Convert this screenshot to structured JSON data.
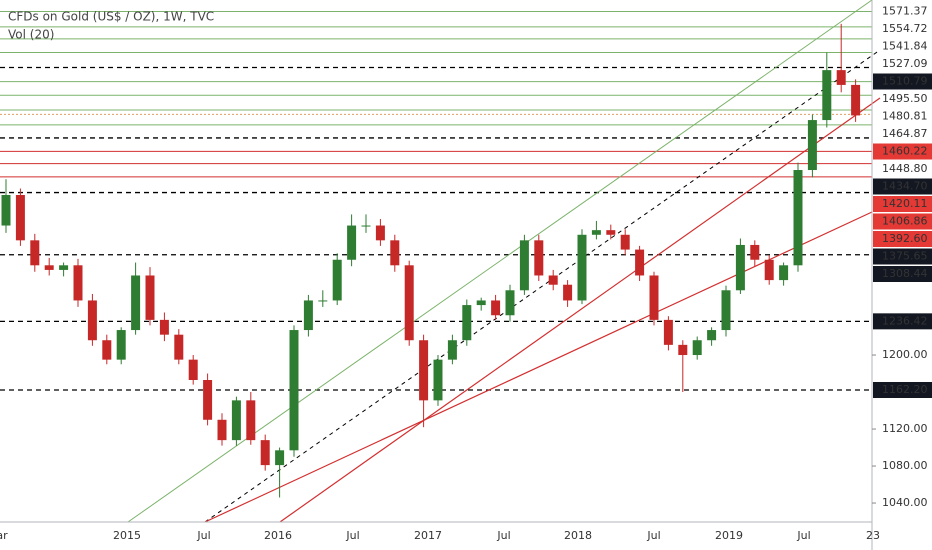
{
  "chart_data": {
    "type": "candlestick",
    "title": "CFDs on Gold (US$ / OZ), 1W, TVC",
    "subtitle": "Vol (20)",
    "up_color": "#2e7d32",
    "down_color": "#c62828",
    "ylim": [
      1019.5,
      1583.8
    ],
    "yticks": [
      {
        "value": 1040,
        "label": "1040.00"
      },
      {
        "value": 1080,
        "label": "1080.00"
      },
      {
        "value": 1120,
        "label": "1120.00"
      },
      {
        "value": 1200,
        "label": "1200.00"
      }
    ],
    "xticks": [
      "ar",
      "2015",
      "Jul",
      "2016",
      "Jul",
      "2017",
      "Jul",
      "2018",
      "Jul",
      "2019",
      "Jul",
      "23"
    ],
    "open": [
      1340,
      1373,
      1324,
      1297,
      1292,
      1297,
      1259,
      1216,
      1195,
      1227,
      1286,
      1238,
      1222,
      1195,
      1173,
      1130,
      1108,
      1151,
      1108,
      1081,
      1097,
      1227,
      1259,
      1259,
      1303,
      1340,
      1340,
      1324,
      1297,
      1216,
      1151,
      1195,
      1216,
      1254,
      1259,
      1243,
      1270,
      1324,
      1286,
      1276,
      1259,
      1330,
      1335,
      1330,
      1314,
      1286,
      1238,
      1211,
      1200,
      1216,
      1227,
      1270,
      1319,
      1303,
      1281,
      1297,
      1400,
      1454,
      1508,
      1492
    ],
    "high": [
      1390,
      1380,
      1331,
      1305,
      1300,
      1304,
      1266,
      1222,
      1230,
      1300,
      1295,
      1246,
      1228,
      1200,
      1180,
      1137,
      1155,
      1160,
      1114,
      1100,
      1232,
      1265,
      1270,
      1310,
      1352,
      1352,
      1347,
      1330,
      1302,
      1222,
      1200,
      1222,
      1260,
      1262,
      1265,
      1276,
      1330,
      1330,
      1292,
      1281,
      1336,
      1345,
      1341,
      1336,
      1318,
      1290,
      1242,
      1216,
      1220,
      1230,
      1275,
      1326,
      1324,
      1308,
      1300,
      1408,
      1460,
      1527,
      1558,
      1498
    ],
    "low": [
      1332,
      1318,
      1290,
      1286,
      1285,
      1252,
      1210,
      1190,
      1190,
      1222,
      1232,
      1215,
      1190,
      1168,
      1124,
      1102,
      1102,
      1103,
      1075,
      1046,
      1090,
      1220,
      1252,
      1254,
      1296,
      1332,
      1318,
      1290,
      1210,
      1122,
      1145,
      1190,
      1210,
      1248,
      1238,
      1236,
      1265,
      1280,
      1270,
      1252,
      1255,
      1325,
      1325,
      1308,
      1280,
      1232,
      1205,
      1160,
      1195,
      1210,
      1220,
      1266,
      1296,
      1276,
      1275,
      1290,
      1392,
      1446,
      1484,
      1452
    ],
    "close": [
      1373,
      1324,
      1297,
      1292,
      1297,
      1259,
      1216,
      1195,
      1227,
      1286,
      1238,
      1222,
      1195,
      1173,
      1130,
      1108,
      1151,
      1108,
      1081,
      1097,
      1227,
      1259,
      1259,
      1303,
      1340,
      1340,
      1324,
      1297,
      1216,
      1151,
      1195,
      1216,
      1254,
      1259,
      1243,
      1270,
      1324,
      1286,
      1276,
      1259,
      1330,
      1335,
      1330,
      1314,
      1286,
      1238,
      1211,
      1200,
      1216,
      1227,
      1270,
      1319,
      1303,
      1281,
      1297,
      1400,
      1454,
      1508,
      1492,
      1459
    ],
    "levels": [
      {
        "value": 1571.37,
        "color": "#7cb36b",
        "style": "solid",
        "tag": "plain"
      },
      {
        "value": 1554.72,
        "color": "#7cb36b",
        "style": "solid",
        "tag": "plain"
      },
      {
        "value": 1541.84,
        "color": "#7cb36b",
        "style": "solid",
        "tag": "plain"
      },
      {
        "value": 1527.09,
        "color": "#7cb36b",
        "style": "solid",
        "tag": "plain"
      },
      {
        "value": 1510.79,
        "color": "#000000",
        "style": "dashed",
        "tag": "box"
      },
      {
        "value": 1495.5,
        "label": "1495.50",
        "color": "#7cb36b",
        "style": "solid",
        "tag": "plain"
      },
      {
        "value": 1480.81,
        "color": "#7cb36b",
        "style": "solid",
        "tag": "plain"
      },
      {
        "value": 1464.87,
        "color": "#7cb36b",
        "style": "solid",
        "tag": "plain"
      },
      {
        "value": 1460.22,
        "color": "#e0a060",
        "style": "dotted",
        "tag": "redbox"
      },
      {
        "value": 1448.8,
        "label": "1448.80",
        "color": "#7cb36b",
        "style": "solid",
        "tag": "plain"
      },
      {
        "value": 1434.7,
        "label": "1434.70",
        "color": "#000000",
        "style": "dashed",
        "tag": "box"
      },
      {
        "value": 1420.11,
        "color": "#d32f2f",
        "style": "solid",
        "tag": "redbox"
      },
      {
        "value": 1406.86,
        "color": "#d32f2f",
        "style": "solid",
        "tag": "redbox"
      },
      {
        "value": 1392.6,
        "label": "1392.60",
        "color": "#d32f2f",
        "style": "solid",
        "tag": "redbox"
      },
      {
        "value": 1375.65,
        "color": "#000000",
        "style": "dashed",
        "tag": "box"
      },
      {
        "value": 1308.44,
        "color": "#000000",
        "style": "dashed",
        "tag": "box"
      },
      {
        "value": 1236.42,
        "color": "#000000",
        "style": "dashed",
        "tag": "box"
      },
      {
        "value": 1162.2,
        "label": "1162.20",
        "color": "#000000",
        "style": "dashed",
        "tag": "box"
      }
    ]
  }
}
